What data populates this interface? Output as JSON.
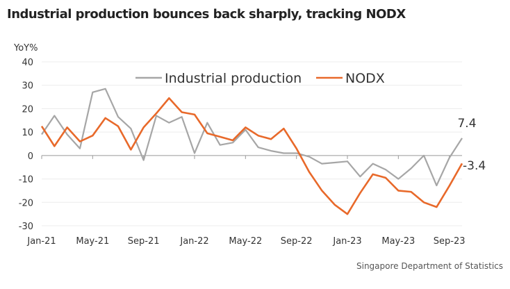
{
  "title": "Industrial production bounces back sharply, tracking NODX",
  "source": "Singapore Department of Statistics",
  "chart_data": {
    "type": "line",
    "ylabel": "YoY%",
    "ylim": [
      -30,
      40
    ],
    "yticks": [
      "40",
      "30",
      "20",
      "10",
      "0",
      "-10",
      "-20",
      "-30"
    ],
    "xtick_labels": [
      "Jan-21",
      "May-21",
      "Sep-21",
      "Jan-22",
      "May-22",
      "Sep-22",
      "Jan-23",
      "May-23",
      "Sep-23"
    ],
    "x": [
      "Jan-21",
      "Feb-21",
      "Mar-21",
      "Apr-21",
      "May-21",
      "Jun-21",
      "Jul-21",
      "Aug-21",
      "Sep-21",
      "Oct-21",
      "Nov-21",
      "Dec-21",
      "Jan-22",
      "Feb-22",
      "Mar-22",
      "Apr-22",
      "May-22",
      "Jun-22",
      "Jul-22",
      "Aug-22",
      "Sep-22",
      "Oct-22",
      "Nov-22",
      "Dec-22",
      "Jan-23",
      "Feb-23",
      "Mar-23",
      "Apr-23",
      "May-23",
      "Jun-23",
      "Jul-23",
      "Aug-23",
      "Sep-23",
      "Oct-23"
    ],
    "series": [
      {
        "name": "Industrial production",
        "color": "#a6a6a6",
        "values": [
          9,
          17,
          9,
          3,
          27,
          28.5,
          16.5,
          11.5,
          -2,
          17,
          14,
          16.5,
          1,
          14,
          4.5,
          5.5,
          11,
          3.5,
          2,
          1,
          1,
          -0.5,
          -3.5,
          -3,
          -2.5,
          -9,
          -3.5,
          -6,
          -10,
          -5.5,
          0,
          -12.8,
          -1,
          7.4
        ]
      },
      {
        "name": "NODX",
        "color": "#e8692a",
        "values": [
          12.5,
          4,
          12,
          6,
          8.5,
          16,
          12.5,
          2.5,
          12,
          18,
          24.5,
          18.5,
          17.5,
          9.5,
          8,
          6.5,
          12,
          8.5,
          7,
          11.5,
          3,
          -7,
          -15,
          -21,
          -25,
          -16,
          -8,
          -9.5,
          -15,
          -15.5,
          -20,
          -22,
          -13,
          -3.4
        ]
      }
    ],
    "annotations": [
      "7.4",
      "-3.4"
    ],
    "grid": true,
    "legend": "top"
  }
}
